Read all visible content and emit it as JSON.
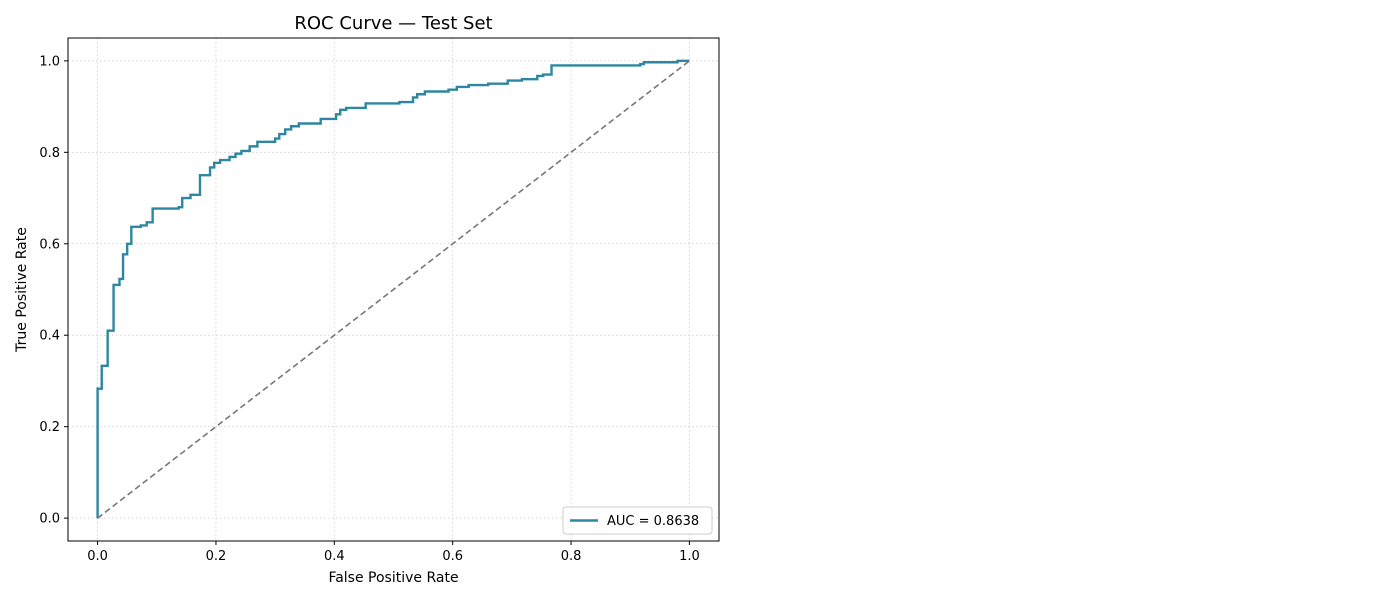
{
  "chart_data": {
    "type": "line",
    "title": "ROC Curve — Test Set",
    "xlabel": "False Positive Rate",
    "ylabel": "True Positive Rate",
    "xlim": [
      -0.05,
      1.05
    ],
    "ylim": [
      -0.05,
      1.05
    ],
    "xticks": [
      0.0,
      0.2,
      0.4,
      0.6,
      0.8,
      1.0
    ],
    "yticks": [
      0.0,
      0.2,
      0.4,
      0.6,
      0.8,
      1.0
    ],
    "xtick_labels": [
      "0.0",
      "0.2",
      "0.4",
      "0.6",
      "0.8",
      "1.0"
    ],
    "ytick_labels": [
      "0.0",
      "0.2",
      "0.4",
      "0.6",
      "0.8",
      "1.0"
    ],
    "grid": true,
    "legend_position": "lower-right",
    "series": [
      {
        "name": "AUC = 0.8638",
        "color": "#2e86a0",
        "style": "step",
        "x": [
          0.0,
          0.0,
          0.007,
          0.007,
          0.017,
          0.017,
          0.027,
          0.027,
          0.037,
          0.037,
          0.043,
          0.043,
          0.05,
          0.05,
          0.057,
          0.057,
          0.073,
          0.073,
          0.083,
          0.083,
          0.093,
          0.093,
          0.137,
          0.137,
          0.143,
          0.143,
          0.157,
          0.157,
          0.173,
          0.173,
          0.19,
          0.19,
          0.197,
          0.197,
          0.207,
          0.207,
          0.223,
          0.223,
          0.233,
          0.233,
          0.243,
          0.243,
          0.257,
          0.257,
          0.27,
          0.27,
          0.3,
          0.3,
          0.307,
          0.307,
          0.317,
          0.317,
          0.327,
          0.327,
          0.34,
          0.34,
          0.377,
          0.377,
          0.403,
          0.403,
          0.41,
          0.41,
          0.42,
          0.42,
          0.453,
          0.453,
          0.51,
          0.51,
          0.533,
          0.533,
          0.54,
          0.54,
          0.553,
          0.553,
          0.593,
          0.593,
          0.607,
          0.607,
          0.627,
          0.627,
          0.66,
          0.66,
          0.693,
          0.693,
          0.717,
          0.717,
          0.743,
          0.743,
          0.753,
          0.753,
          0.767,
          0.767,
          0.917,
          0.917,
          0.923,
          0.923,
          0.98,
          0.98,
          1.0
        ],
        "y": [
          0.0,
          0.283,
          0.283,
          0.333,
          0.333,
          0.41,
          0.41,
          0.51,
          0.51,
          0.523,
          0.523,
          0.577,
          0.577,
          0.6,
          0.6,
          0.637,
          0.637,
          0.64,
          0.64,
          0.647,
          0.647,
          0.677,
          0.677,
          0.68,
          0.68,
          0.7,
          0.7,
          0.707,
          0.707,
          0.75,
          0.75,
          0.767,
          0.767,
          0.777,
          0.777,
          0.783,
          0.783,
          0.79,
          0.79,
          0.797,
          0.797,
          0.803,
          0.803,
          0.813,
          0.813,
          0.823,
          0.823,
          0.83,
          0.83,
          0.84,
          0.84,
          0.85,
          0.85,
          0.857,
          0.857,
          0.863,
          0.863,
          0.873,
          0.873,
          0.883,
          0.883,
          0.893,
          0.893,
          0.897,
          0.897,
          0.907,
          0.907,
          0.91,
          0.91,
          0.92,
          0.92,
          0.927,
          0.927,
          0.933,
          0.933,
          0.937,
          0.937,
          0.943,
          0.943,
          0.947,
          0.947,
          0.95,
          0.95,
          0.957,
          0.957,
          0.96,
          0.96,
          0.967,
          0.967,
          0.97,
          0.97,
          0.99,
          0.99,
          0.993,
          0.993,
          0.997,
          0.997,
          1.0,
          1.0
        ]
      },
      {
        "name": "",
        "color": "#777777",
        "style": "dashed",
        "x": [
          0.0,
          1.0
        ],
        "y": [
          0.0,
          1.0
        ]
      }
    ]
  }
}
